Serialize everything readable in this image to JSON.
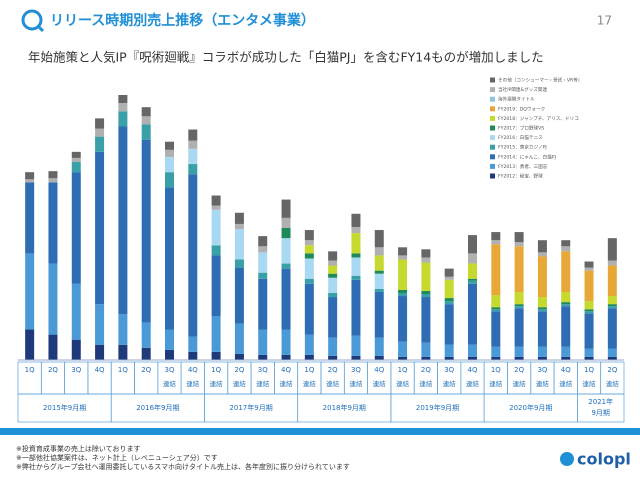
{
  "header": {
    "title": "リリース時期別売上推移（エンタメ事業）",
    "page": "17",
    "headline": "年始施策と人気IP『呪術廻戦』コラボが成功した「白猫PJ」を含むFY14ものが増加しました"
  },
  "chart_data": {
    "type": "stacked_bar",
    "categories": [
      "1Q",
      "2Q",
      "3Q",
      "4Q",
      "1Q",
      "2Q",
      "3Q",
      "4Q",
      "1Q",
      "2Q",
      "3Q",
      "4Q",
      "1Q",
      "2Q",
      "3Q",
      "4Q",
      "1Q",
      "2Q",
      "3Q",
      "4Q",
      "1Q",
      "2Q",
      "3Q",
      "4Q",
      "1Q",
      "2Q"
    ],
    "sublabels": [
      null,
      null,
      null,
      null,
      null,
      null,
      "連結",
      "連結",
      "連結",
      "連結",
      "連結",
      "連結",
      "連結",
      "連結",
      "連結",
      "連結",
      "連結",
      "連結",
      "連結",
      "連結",
      "連結",
      "連結",
      "連結",
      "連結",
      "連結",
      "連結"
    ],
    "groups": [
      {
        "label": "2015年9月期",
        "count": 4
      },
      {
        "label": "2016年9月期",
        "count": 4
      },
      {
        "label": "2017年9月期",
        "count": 4
      },
      {
        "label": "2018年9月期",
        "count": 4
      },
      {
        "label": "2019年9月期",
        "count": 4
      },
      {
        "label": "2020年9月期",
        "count": 4
      },
      {
        "label": "2021年\n9月期",
        "count": 2
      }
    ],
    "series": [
      {
        "name": "FY2012：秘宝、野球",
        "color": "#1f3a7a",
        "values": [
          30,
          25,
          20,
          15,
          15,
          12,
          10,
          8,
          8,
          6,
          5,
          5,
          5,
          4,
          4,
          4,
          3,
          3,
          3,
          3,
          3,
          3,
          3,
          3,
          3,
          3
        ]
      },
      {
        "name": "FY2013：勇者、三国志",
        "color": "#4a9ad8",
        "values": [
          75,
          70,
          55,
          40,
          30,
          25,
          20,
          15,
          35,
          30,
          25,
          25,
          20,
          18,
          20,
          18,
          15,
          14,
          12,
          12,
          10,
          10,
          10,
          10,
          8,
          8
        ]
      },
      {
        "name": "FY2014：にゃんこ、白猫PJ",
        "color": "#2e6db4",
        "values": [
          70,
          80,
          110,
          150,
          185,
          180,
          140,
          160,
          60,
          55,
          50,
          60,
          50,
          40,
          55,
          45,
          45,
          45,
          40,
          60,
          35,
          38,
          35,
          40,
          35,
          40
        ]
      },
      {
        "name": "FY2015：東京カジノPJ",
        "color": "#3aa0a8",
        "values": [
          0,
          0,
          10,
          15,
          15,
          15,
          15,
          10,
          10,
          8,
          6,
          5,
          5,
          4,
          4,
          3,
          3,
          3,
          3,
          3,
          2,
          2,
          2,
          2,
          2,
          2
        ]
      },
      {
        "name": "FY2016：白猫テニス",
        "color": "#a9d8f2",
        "values": [
          0,
          0,
          0,
          0,
          0,
          0,
          15,
          15,
          35,
          30,
          20,
          25,
          20,
          15,
          18,
          15,
          0,
          0,
          0,
          0,
          0,
          0,
          0,
          0,
          0,
          0
        ]
      },
      {
        "name": "FY2017：プロ野球VS",
        "color": "#1e8a5a",
        "values": [
          0,
          0,
          0,
          0,
          0,
          0,
          0,
          0,
          0,
          0,
          0,
          10,
          5,
          4,
          4,
          3,
          3,
          3,
          3,
          2,
          2,
          2,
          2,
          2,
          2,
          2
        ]
      },
      {
        "name": "FY2018：ジャンプチ、アリス、ドリコ",
        "color": "#c6d92e",
        "values": [
          0,
          0,
          0,
          0,
          0,
          0,
          0,
          0,
          0,
          0,
          0,
          0,
          8,
          8,
          20,
          15,
          30,
          28,
          18,
          15,
          12,
          12,
          10,
          10,
          8,
          8
        ]
      },
      {
        "name": "FY2019：DQウォーク",
        "color": "#e8a838",
        "values": [
          0,
          0,
          0,
          0,
          0,
          0,
          0,
          0,
          0,
          0,
          0,
          0,
          0,
          0,
          0,
          0,
          0,
          0,
          0,
          0,
          50,
          45,
          40,
          40,
          30,
          30
        ]
      },
      {
        "name": "海外展開タイトル",
        "color": "#8fc3e0",
        "values": [
          0,
          0,
          0,
          0,
          0,
          0,
          0,
          0,
          0,
          0,
          0,
          0,
          0,
          0,
          0,
          0,
          0,
          0,
          0,
          0,
          0,
          0,
          0,
          0,
          0,
          0
        ]
      },
      {
        "name": "当社IP関連&グッズ関連",
        "color": "#b0b0b0",
        "values": [
          3,
          4,
          4,
          8,
          8,
          8,
          7,
          8,
          4,
          5,
          6,
          10,
          5,
          5,
          6,
          8,
          4,
          5,
          3,
          10,
          4,
          4,
          4,
          5,
          3,
          5
        ]
      },
      {
        "name": "その他（コンシューマー・受託・VR等）",
        "color": "#666666",
        "values": [
          7,
          7,
          6,
          10,
          8,
          9,
          8,
          11,
          10,
          11,
          10,
          18,
          10,
          9,
          13,
          17,
          8,
          8,
          8,
          18,
          8,
          10,
          12,
          6,
          6,
          22
        ]
      }
    ]
  },
  "footnotes": [
    "※投資育成事業の売上は除いております",
    "※一部他社協業案件は、ネット計上（レベニューシェア分）です",
    "※弊社からグループ会社へ運用委託しているスマホ向けタイトル売上は、各年度別に振り分けられています"
  ],
  "logo": "colopl"
}
